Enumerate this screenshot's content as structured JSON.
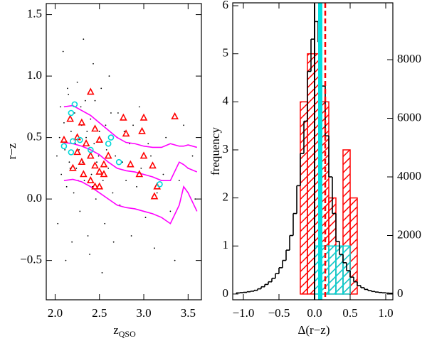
{
  "chart_data": [
    {
      "type": "scatter",
      "xlabel": "z",
      "xlabel_sub": "QSO",
      "ylabel": "r−z",
      "xlim": [
        1.9,
        3.65
      ],
      "ylim": [
        -0.82,
        1.59
      ],
      "xticks": [
        {
          "value": 2.0,
          "label": "2.0"
        },
        2.5,
        {
          "value": 3.0,
          "label": "3.0"
        },
        3.5
      ],
      "yticks": [
        {
          "value": -0.5,
          "label": "−0.5"
        },
        {
          "value": 0.0,
          "label": "0.0"
        },
        0.5,
        {
          "value": 1.0,
          "label": "1.0"
        },
        1.5
      ],
      "series": [
        {
          "marker": "dot",
          "color": "#000000",
          "x": [
            2.02,
            2.05,
            2.07,
            2.1,
            2.11,
            2.13,
            2.15,
            2.16,
            2.18,
            2.2,
            2.21,
            2.22,
            2.24,
            2.25,
            2.27,
            2.28,
            2.3,
            2.31,
            2.33,
            2.34,
            2.35,
            2.37,
            2.38,
            2.4,
            2.41,
            2.43,
            2.44,
            2.46,
            2.47,
            2.5,
            2.52,
            2.54,
            2.56,
            2.58,
            2.6,
            2.63,
            2.65,
            2.68,
            2.7,
            2.73,
            2.76,
            2.8,
            2.84,
            2.88,
            2.92,
            2.97,
            3.02,
            3.08,
            3.15,
            3.22,
            3.3,
            3.4,
            3.5,
            3.58,
            2.03,
            2.06,
            2.09,
            2.12,
            2.14,
            2.17,
            2.19,
            2.23,
            2.26,
            2.29,
            2.32,
            2.36,
            2.39,
            2.42,
            2.45,
            2.49,
            2.53,
            2.57,
            2.61,
            2.66,
            2.71,
            2.78,
            2.86,
            2.95,
            3.05,
            3.12,
            3.25,
            3.35,
            3.45,
            3.55
          ],
          "values": [
            0.35,
            0.5,
            0.2,
            0.62,
            0.4,
            0.1,
            0.85,
            0.3,
            0.55,
            0.45,
            0.05,
            0.7,
            0.25,
            0.95,
            0.4,
            -0.1,
            0.6,
            0.3,
            0.15,
            0.8,
            0.5,
            -0.3,
            0.35,
            0.65,
            0.2,
            1.1,
            0.45,
            0.0,
            0.3,
            0.55,
            0.9,
            0.15,
            -0.2,
            0.4,
            0.25,
            0.7,
            0.05,
            0.35,
            0.5,
            -0.05,
            0.3,
            0.15,
            0.45,
            0.6,
            0.1,
            0.25,
            -0.15,
            0.35,
            0.05,
            0.2,
            -0.1,
            0.15,
            0.25,
            0.0,
            -0.2,
            0.75,
            1.2,
            -0.5,
            0.9,
            0.25,
            -0.35,
            0.45,
            0.15,
            0.75,
            1.3,
            0.55,
            -0.45,
            0.1,
            0.8,
            0.35,
            -0.6,
            0.6,
            1.0,
            -0.35,
            0.7,
            0.55,
            -0.3,
            0.75,
            0.45,
            -0.4,
            0.5,
            -0.5,
            0.6,
            0.35
          ]
        },
        {
          "marker": "line",
          "color": "#ff00ff",
          "x": [
            2.1,
            2.2,
            2.3,
            2.4,
            2.5,
            2.6,
            2.7,
            2.8,
            2.9,
            3.0,
            3.1,
            3.2,
            3.3,
            3.4,
            3.45,
            3.5,
            3.6
          ],
          "values": [
            0.75,
            0.76,
            0.72,
            0.68,
            0.62,
            0.56,
            0.5,
            0.46,
            0.45,
            0.43,
            0.42,
            0.42,
            0.45,
            0.43,
            0.43,
            0.44,
            0.42
          ]
        },
        {
          "marker": "line",
          "color": "#ff00ff",
          "x": [
            2.1,
            2.2,
            2.3,
            2.4,
            2.5,
            2.6,
            2.7,
            2.8,
            2.9,
            3.0,
            3.1,
            3.2,
            3.3,
            3.4,
            3.45,
            3.5,
            3.6
          ],
          "values": [
            0.46,
            0.45,
            0.43,
            0.4,
            0.36,
            0.3,
            0.25,
            0.23,
            0.22,
            0.2,
            0.18,
            0.15,
            0.15,
            0.3,
            0.28,
            0.25,
            0.22
          ]
        },
        {
          "marker": "line",
          "color": "#ff00ff",
          "x": [
            2.1,
            2.2,
            2.3,
            2.4,
            2.5,
            2.6,
            2.7,
            2.8,
            2.9,
            3.0,
            3.1,
            3.2,
            3.3,
            3.4,
            3.45,
            3.5,
            3.6
          ],
          "values": [
            0.15,
            0.16,
            0.14,
            0.1,
            0.05,
            0.0,
            -0.05,
            -0.07,
            -0.08,
            -0.1,
            -0.12,
            -0.15,
            -0.2,
            -0.05,
            0.1,
            0.05,
            -0.1
          ]
        },
        {
          "marker": "triangle",
          "color": "#ff0000",
          "x": [
            2.4,
            2.3,
            2.17,
            2.45,
            2.25,
            2.35,
            2.5,
            2.1,
            2.25,
            2.3,
            2.4,
            2.45,
            2.55,
            2.2,
            2.32,
            2.5,
            2.55,
            2.4,
            2.45,
            2.5,
            2.6,
            2.77,
            2.8,
            3.0,
            3.35,
            2.98,
            3.0,
            3.1,
            2.95,
            3.15,
            3.12,
            2.85
          ],
          "values": [
            0.87,
            0.62,
            0.65,
            0.57,
            0.5,
            0.45,
            0.48,
            0.48,
            0.38,
            0.3,
            0.35,
            0.27,
            0.28,
            0.25,
            0.2,
            0.22,
            0.2,
            0.15,
            0.1,
            0.1,
            0.35,
            0.66,
            0.53,
            0.66,
            0.67,
            0.55,
            0.35,
            0.27,
            0.2,
            0.1,
            0.02,
            0.28
          ]
        },
        {
          "marker": "circle",
          "color": "#00d8d8",
          "x": [
            2.22,
            2.18,
            2.2,
            2.18,
            2.1,
            2.28,
            2.4,
            2.6,
            2.63,
            2.72,
            3.18
          ],
          "values": [
            0.77,
            0.7,
            0.47,
            0.38,
            0.43,
            0.48,
            0.4,
            0.45,
            0.5,
            0.3,
            0.12
          ]
        }
      ]
    },
    {
      "type": "histogram",
      "xlabel": "Δ(r−z)",
      "ylabel": "frequency",
      "xlim": [
        -1.15,
        1.1
      ],
      "ylim": [
        -0.12,
        6.06
      ],
      "y2lim": [
        -194,
        9939
      ],
      "xticks": [
        {
          "value": -1.0,
          "label": "−1.0"
        },
        {
          "value": -0.5,
          "label": "−0.5"
        },
        {
          "value": 0.0,
          "label": "0.0"
        },
        0.5,
        {
          "value": 1.0,
          "label": "1.0"
        }
      ],
      "yticks": [
        0,
        1,
        2,
        3,
        4,
        5,
        6
      ],
      "y2ticks": [
        0,
        2000,
        4000,
        6000,
        8000
      ],
      "series": [
        {
          "style": "hatch",
          "color": "#ff0000",
          "bins": [
            -0.2,
            -0.1,
            0.0,
            0.1,
            0.2,
            0.3,
            0.4,
            0.5,
            0.6
          ],
          "values": [
            4,
            5,
            5,
            4,
            2,
            1,
            3,
            2
          ]
        },
        {
          "style": "hatch",
          "color": "#00d8d8",
          "bins": [
            0.0,
            0.1,
            0.2,
            0.3,
            0.4,
            0.5
          ],
          "values": [
            1,
            1,
            1,
            1,
            1
          ]
        },
        {
          "style": "step",
          "color": "#000000",
          "axis": "y2",
          "bins": [
            -1.1,
            -1.05,
            -1.0,
            -0.95,
            -0.9,
            -0.85,
            -0.8,
            -0.75,
            -0.7,
            -0.65,
            -0.6,
            -0.55,
            -0.5,
            -0.45,
            -0.4,
            -0.35,
            -0.3,
            -0.25,
            -0.2,
            -0.15,
            -0.1,
            -0.05,
            0.0,
            0.05,
            0.1,
            0.15,
            0.2,
            0.25,
            0.3,
            0.35,
            0.4,
            0.45,
            0.5,
            0.55,
            0.6,
            0.65,
            0.7,
            0.75,
            0.8,
            0.85,
            0.9,
            0.95,
            1.0,
            1.05,
            1.1
          ],
          "values": [
            40,
            50,
            60,
            80,
            100,
            130,
            180,
            250,
            330,
            420,
            540,
            700,
            900,
            1150,
            1500,
            2000,
            2750,
            3700,
            4800,
            5900,
            7600,
            8700,
            9300,
            8600,
            7100,
            5400,
            4000,
            2750,
            1800,
            1350,
            1070,
            800,
            580,
            420,
            290,
            220,
            160,
            120,
            90,
            70,
            55,
            45,
            35,
            30
          ]
        }
      ],
      "vlines": [
        {
          "value": 0.0,
          "color": "#000000",
          "dash": false,
          "width": 2
        },
        {
          "value": 0.08,
          "color": "#00e0e0",
          "dash": false,
          "width": 6
        },
        {
          "value": 0.06,
          "color": "#00e0e0",
          "dash": true,
          "width": 2
        },
        {
          "value": 0.15,
          "color": "#ff0000",
          "dash": true,
          "width": 2.5
        }
      ]
    }
  ]
}
